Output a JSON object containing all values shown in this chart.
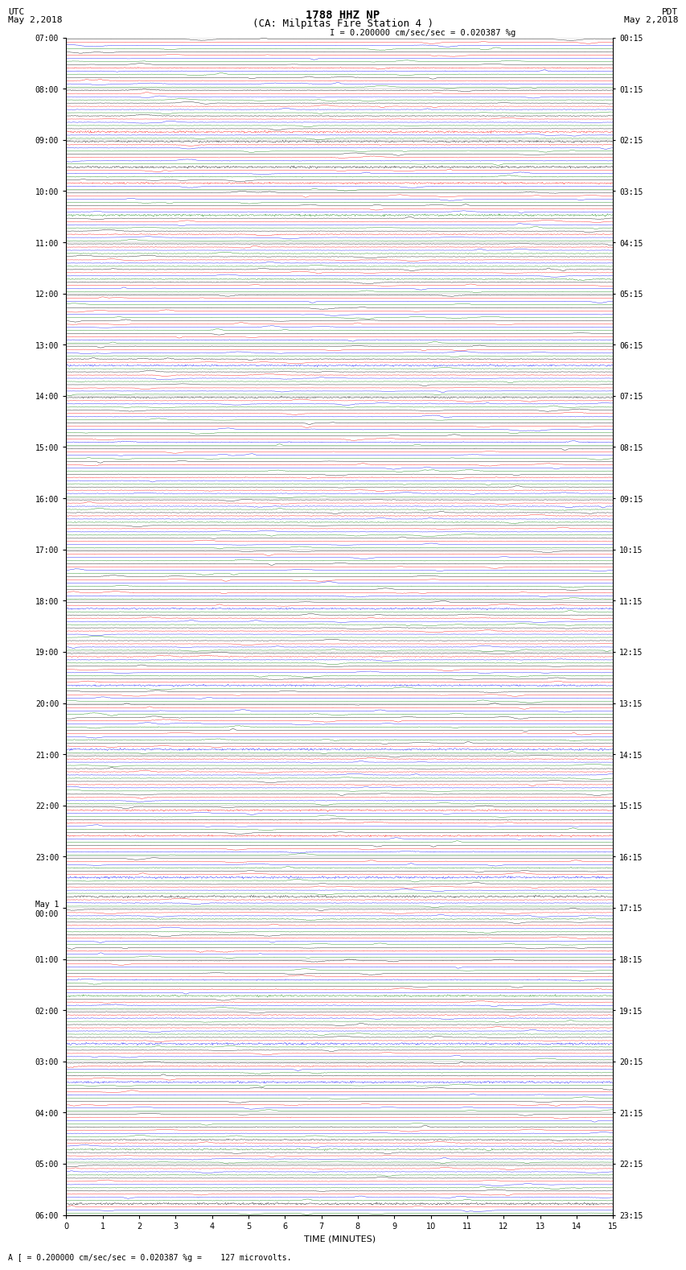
{
  "title_line1": "1788 HHZ NP",
  "title_line2": "(CA: Milpitas Fire Station 4 )",
  "scale_text": "= 0.200000 cm/sec/sec = 0.020387 %g",
  "bottom_text": "A [ = 0.200000 cm/sec/sec = 0.020387 %g =    127 microvolts.",
  "utc_label": "UTC",
  "utc_date": "May 2,2018",
  "pdt_label": "PDT",
  "pdt_date": "May 2,2018",
  "xlabel": "TIME (MINUTES)",
  "left_times": [
    "07:00",
    "",
    "",
    "",
    "08:00",
    "",
    "",
    "",
    "09:00",
    "",
    "",
    "",
    "10:00",
    "",
    "",
    "",
    "11:00",
    "",
    "",
    "",
    "12:00",
    "",
    "",
    "",
    "13:00",
    "",
    "",
    "",
    "14:00",
    "",
    "",
    "",
    "15:00",
    "",
    "",
    "",
    "16:00",
    "",
    "",
    "",
    "17:00",
    "",
    "",
    "",
    "18:00",
    "",
    "",
    "",
    "19:00",
    "",
    "",
    "",
    "20:00",
    "",
    "",
    "",
    "21:00",
    "",
    "",
    "",
    "22:00",
    "",
    "",
    "",
    "23:00",
    "",
    "",
    "",
    "May 1\n00:00",
    "",
    "",
    "",
    "01:00",
    "",
    "",
    "",
    "02:00",
    "",
    "",
    "",
    "03:00",
    "",
    "",
    "",
    "04:00",
    "",
    "",
    "",
    "05:00",
    "",
    "",
    "",
    "06:00",
    "",
    ""
  ],
  "right_times": [
    "00:15",
    "",
    "",
    "",
    "01:15",
    "",
    "",
    "",
    "02:15",
    "",
    "",
    "",
    "03:15",
    "",
    "",
    "",
    "04:15",
    "",
    "",
    "",
    "05:15",
    "",
    "",
    "",
    "06:15",
    "",
    "",
    "",
    "07:15",
    "",
    "",
    "",
    "08:15",
    "",
    "",
    "",
    "09:15",
    "",
    "",
    "",
    "10:15",
    "",
    "",
    "",
    "11:15",
    "",
    "",
    "",
    "12:15",
    "",
    "",
    "",
    "13:15",
    "",
    "",
    "",
    "14:15",
    "",
    "",
    "",
    "15:15",
    "",
    "",
    "",
    "16:15",
    "",
    "",
    "",
    "17:15",
    "",
    "",
    "",
    "18:15",
    "",
    "",
    "",
    "19:15",
    "",
    "",
    "",
    "20:15",
    "",
    "",
    "",
    "21:15",
    "",
    "",
    "",
    "22:15",
    "",
    "",
    "",
    "23:15",
    "",
    ""
  ],
  "colors": [
    "black",
    "red",
    "blue",
    "green"
  ],
  "n_rows": 92,
  "n_cols": 4,
  "xmin": 0,
  "xmax": 15,
  "noise_base": 0.3,
  "spike_prob": 0.015,
  "spike_amp": 3.0,
  "bg_color": "#ffffff",
  "plot_bg": "#ffffff",
  "figwidth": 8.5,
  "figheight": 16.13,
  "dpi": 100
}
